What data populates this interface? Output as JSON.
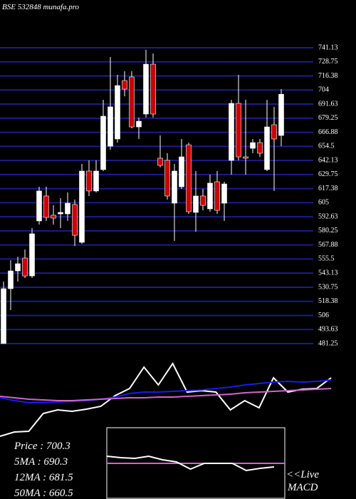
{
  "chart_data": [
    {
      "type": "candlestick",
      "title": "BSE 532848 munafa.pro",
      "open": [
        481.3,
        529.5,
        545.1,
        556.4,
        540.7,
        589.0,
        610.9,
        594.0,
        595.2,
        595.2,
        603.4,
        570.2,
        632.8,
        615.3,
        634.1,
        654.7,
        661.0,
        712.3,
        715.5,
        671.6,
        682.9,
        726.7,
        644.1,
        642.2,
        604.6,
        619.0,
        655.9,
        596.5,
        610.9,
        599.6,
        623.4,
        604.6,
        642.2,
        692.3,
        645.3,
        652.8,
        657.8,
        634.1,
        673.5,
        664.1
      ],
      "high": [
        535.7,
        554.5,
        557.6,
        563.9,
        582.7,
        619.0,
        619.0,
        602.7,
        609.0,
        614.0,
        607.8,
        639.1,
        642.2,
        642.2,
        695.4,
        733.0,
        717.3,
        720.5,
        720.5,
        679.8,
        739.3,
        736.1,
        664.1,
        648.5,
        639.1,
        661.0,
        657.8,
        632.8,
        617.1,
        629.7,
        632.8,
        623.4,
        695.4,
        717.3,
        695.4,
        661.0,
        661.0,
        695.4,
        689.2,
        704.8
      ],
      "low": [
        481.3,
        510.7,
        535.7,
        538.9,
        538.9,
        585.8,
        589.0,
        585.8,
        582.7,
        589.0,
        567.0,
        568.9,
        610.9,
        614.0,
        632.8,
        651.6,
        657.8,
        698.5,
        670.4,
        661.0,
        679.8,
        679.8,
        636.0,
        607.8,
        571.4,
        617.1,
        595.2,
        579.6,
        598.3,
        597.1,
        595.2,
        589.0,
        629.7,
        642.2,
        629.7,
        648.5,
        645.3,
        632.8,
        615.3,
        654.7
      ],
      "close": [
        529.5,
        545.1,
        551.4,
        540.7,
        577.7,
        615.3,
        592.1,
        591.5,
        596.5,
        604.6,
        576.4,
        632.8,
        615.3,
        632.8,
        681.0,
        689.2,
        707.9,
        704.8,
        671.6,
        676.6,
        726.7,
        682.9,
        637.8,
        610.9,
        632.8,
        645.3,
        597.1,
        610.9,
        602.7,
        622.2,
        598.3,
        621.5,
        692.3,
        645.3,
        644.1,
        657.8,
        648.5,
        671.6,
        661.0,
        700.3
      ],
      "up_color": "#ffffff",
      "down_color": "#cc0000",
      "ylim": [
        481.25,
        741.13
      ],
      "yticks": [
        741.13,
        728.75,
        716.38,
        704,
        691.63,
        679.25,
        666.88,
        654.5,
        642.13,
        629.75,
        617.38,
        605,
        592.63,
        580.25,
        567.88,
        555.5,
        543.13,
        530.75,
        518.38,
        506,
        493.63,
        481.25
      ],
      "grid": true,
      "grid_color": "#1c1c8c",
      "info": [
        "Price  : 700.3",
        "5MA : 690.3",
        "12MA : 681.5",
        "50MA : 660.5"
      ]
    },
    {
      "type": "line",
      "ylim": [
        0,
        110
      ],
      "series": [
        {
          "color": "#ffffff",
          "values": [
            3,
            9,
            10,
            35,
            40,
            38,
            41,
            45,
            60,
            70,
            100,
            75,
            105,
            65,
            67,
            65,
            40,
            53,
            43,
            85,
            65,
            69,
            70,
            85
          ]
        },
        {
          "color": "#1a1aee",
          "values": [
            57,
            53,
            50,
            50,
            51,
            52,
            53,
            55,
            58,
            63,
            65,
            65,
            66,
            67,
            68,
            70,
            72,
            75,
            77,
            79,
            80,
            79,
            80,
            82
          ]
        },
        {
          "color": "#cc66cc",
          "values": [
            59,
            57,
            55,
            54,
            53,
            53,
            54,
            55,
            56,
            57,
            57,
            58,
            58,
            59,
            60,
            61,
            62,
            64,
            65,
            66,
            67,
            68,
            69,
            70
          ]
        }
      ]
    },
    {
      "type": "line",
      "title": "MACD",
      "note": "<<Live",
      "ylim": [
        -50,
        50
      ],
      "series": [
        {
          "color": "#ffffff",
          "values": [
            10,
            8,
            7,
            10,
            5,
            2,
            -8,
            0,
            0,
            0,
            -10,
            -7,
            -5
          ]
        }
      ]
    }
  ]
}
